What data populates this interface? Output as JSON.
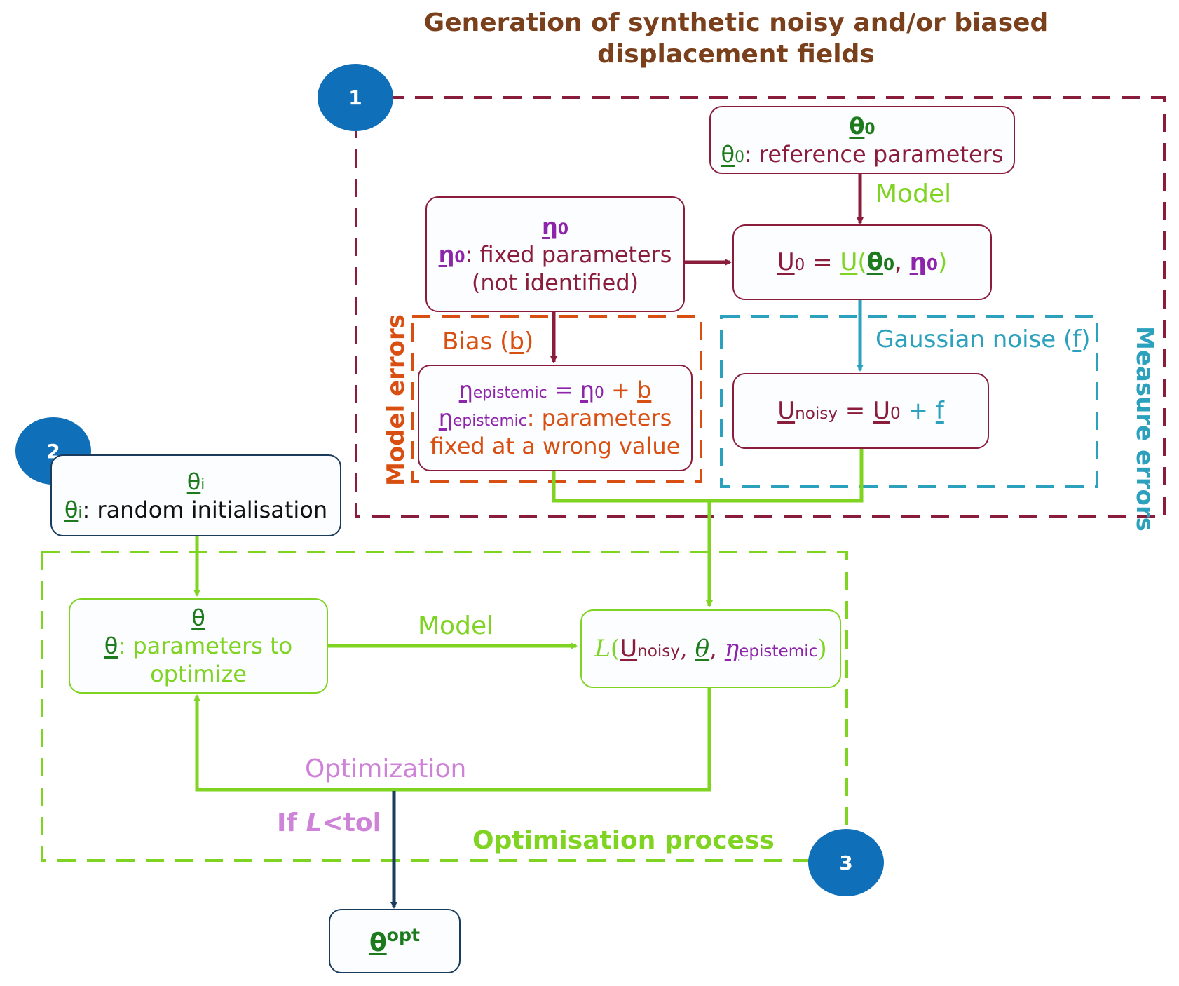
{
  "title": {
    "line1": "Generation of synthetic noisy and/or biased",
    "line2": "displacement fields"
  },
  "badges": {
    "b1": "1",
    "b2": "2",
    "b3": "3"
  },
  "theta0_box": {
    "symbol": "θ",
    "sub": "0",
    "desc_symbol": "θ",
    "desc_sub": "0",
    "desc_text": ": reference parameters"
  },
  "arrow_labels": {
    "model_top": "Model",
    "model_bottom": "Model",
    "optimization": "Optimization",
    "gaussian_pre": "Gaussian noise (",
    "gaussian_var": "f",
    "gaussian_post": ")",
    "bias_pre": "Bias (",
    "bias_var": "b",
    "bias_post": ")",
    "if_pre": "If ",
    "if_var": "L",
    "if_post": "<tol"
  },
  "eta0_box": {
    "symbol": "η",
    "sub": "0",
    "desc_symbol": "η",
    "desc_sub": "0",
    "desc_text": ": fixed parameters",
    "desc_text2": "(not identified)"
  },
  "u0_box": {
    "lhs": "U",
    "lhs_sub": "0",
    "eq": " = ",
    "func": "U",
    "open": "(",
    "theta": "θ",
    "theta_sub": "0",
    "comma": ", ",
    "eta": "η",
    "eta_sub": "0",
    "close": ")"
  },
  "epistemic_box": {
    "eta": "η",
    "eta_sub": "epistemic",
    "eq": " = ",
    "eta0": "η",
    "eta0_sub": "0",
    "plus": " + ",
    "b": "b",
    "desc_eta": "η",
    "desc_sub": "epistemic",
    "desc_text": ": parameters",
    "desc_text2": "fixed at a wrong value"
  },
  "unoisy_box": {
    "lhs": "U",
    "lhs_sub": "noisy",
    "eq": " = ",
    "u0": "U",
    "u0_sub": "0",
    "plus": " + ",
    "f": "f"
  },
  "thetai_box": {
    "symbol": "θ",
    "sub": "i",
    "desc_symbol": "θ",
    "desc_sub": "i",
    "desc_text": ": random initialisation"
  },
  "theta_box": {
    "symbol": "θ",
    "desc_symbol": "θ",
    "desc_text": ": parameters to",
    "desc_text2": "optimize"
  },
  "loss_box": {
    "L": "L",
    "open": "(",
    "u": "U",
    "u_sub": "noisy",
    "comma1": ", ",
    "theta": "θ",
    "comma2": ", ",
    "eta": "η",
    "eta_sub": "epistemic",
    "close": ")"
  },
  "opt_box": {
    "symbol": "θ",
    "sup": "opt"
  },
  "region_labels": {
    "model_errors": "Model errors",
    "measure_errors": "Measure errors",
    "optimisation_process": "Optimisation process"
  },
  "colors": {
    "brown": "#7a3f1b",
    "maroon": "#8b1d3c",
    "green": "#7fd321",
    "dark_green": "#1d7a1d",
    "purple": "#8e24aa",
    "orange": "#d94f12",
    "teal": "#2ba1bd",
    "pink": "#cf83d8",
    "navy": "#1a3b5c",
    "badge_blue": "#0f6fb8"
  }
}
